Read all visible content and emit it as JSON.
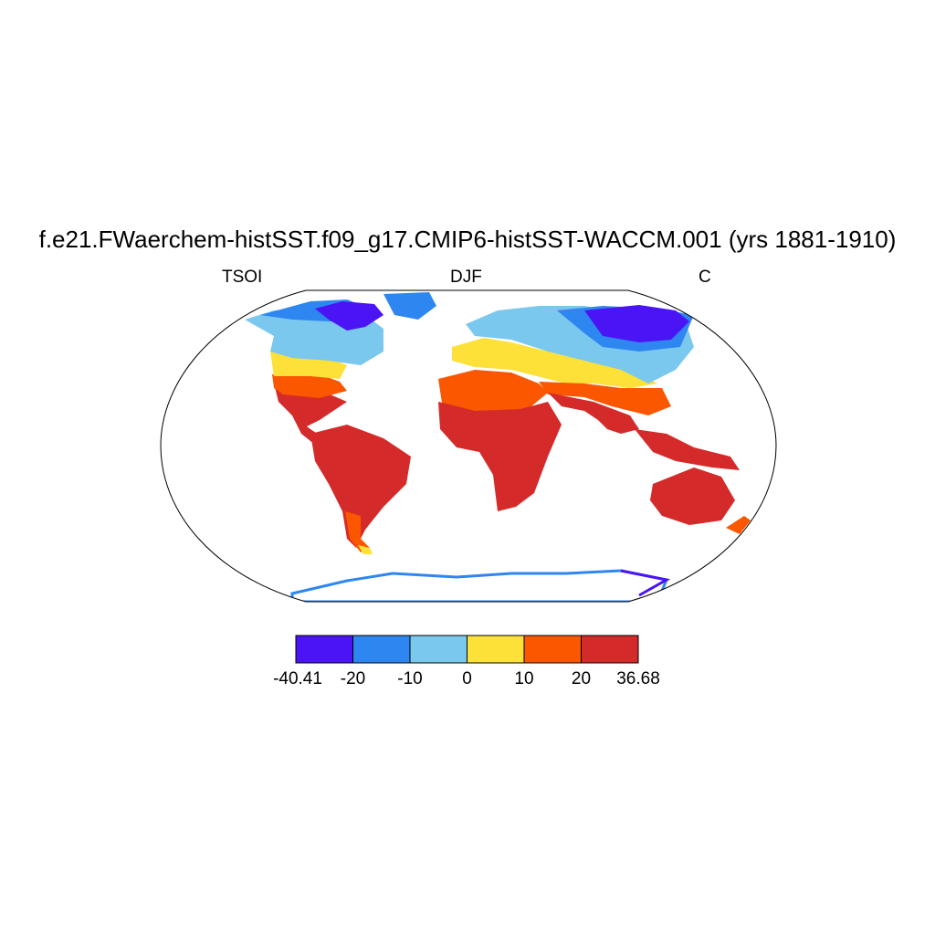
{
  "title": "f.e21.FWaerchem-histSST.f09_g17.CMIP6-histSST-WACCM.001 (yrs 1881-1910)",
  "subtitles": {
    "left": "TSOI",
    "center": "DJF",
    "right": "C"
  },
  "projection": "Robinson",
  "colorbar": {
    "colors": [
      "#4b14f5",
      "#2e86f0",
      "#7ac8ee",
      "#fde038",
      "#fb5600",
      "#d42a2a"
    ],
    "labels": [
      "-40.41",
      "-20",
      "-10",
      "0",
      "10",
      "20",
      "36.68"
    ]
  }
}
